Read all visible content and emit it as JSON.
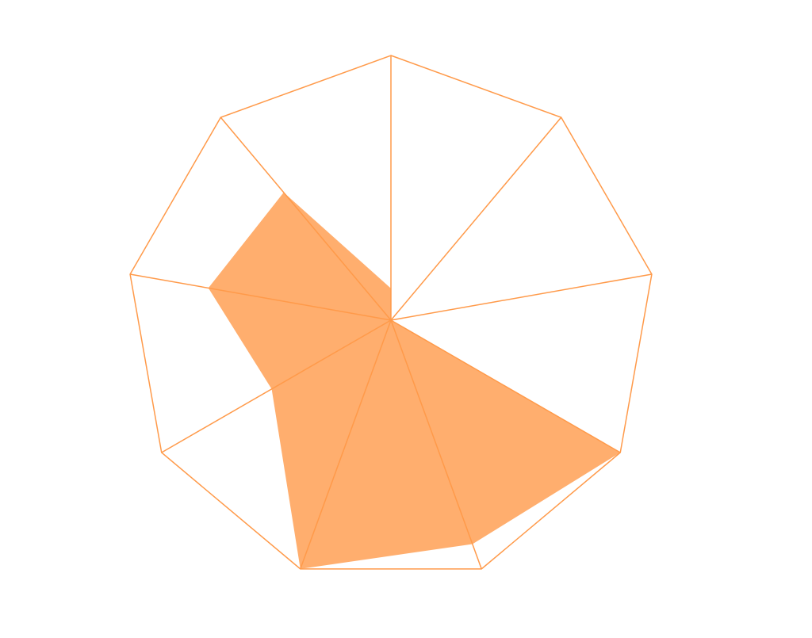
{
  "chart_data": {
    "type": "radar",
    "values": [
      0.12,
      0,
      0,
      1,
      0.9,
      1,
      0.52,
      0.7,
      0.63
    ],
    "ylim": [
      0,
      1
    ],
    "color": "#ff9a4a",
    "fill_opacity": 0.8
  }
}
